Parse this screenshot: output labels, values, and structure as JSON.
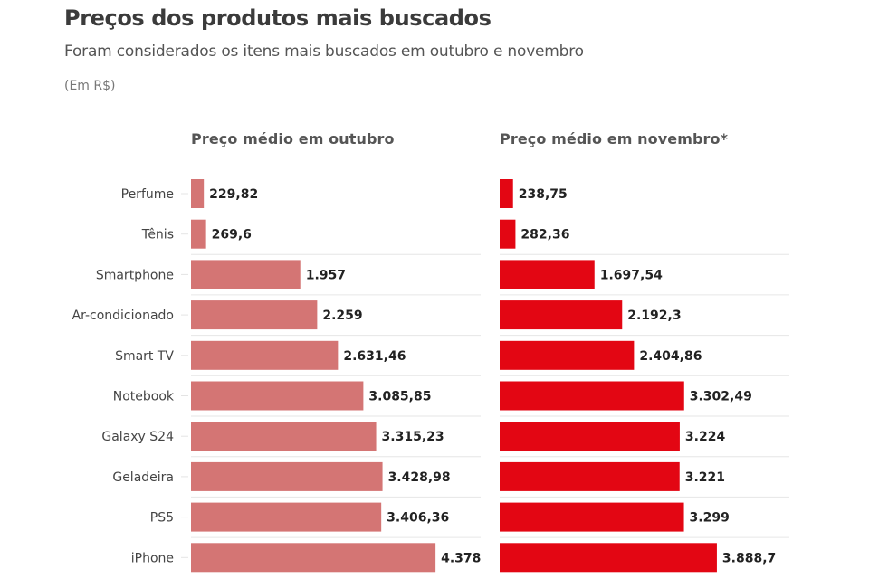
{
  "header": {
    "title": "Preços dos produtos mais buscados",
    "subtitle": "Foram considerados os itens mais buscados em outubro e novembro",
    "unit": "(Em R$)"
  },
  "chart_data": {
    "type": "bar",
    "orientation": "horizontal",
    "layout": "small-multiples",
    "title": "Preços dos produtos mais buscados",
    "subtitle": "Foram considerados os itens mais buscados em outubro e novembro",
    "unit": "R$",
    "categories": [
      "Perfume",
      "Tênis",
      "Smartphone",
      "Ar-condicionado",
      "Smart TV",
      "Notebook",
      "Galaxy S24",
      "Geladeira",
      "PS5",
      "iPhone"
    ],
    "xlim": [
      0,
      5000
    ],
    "grid": false,
    "series": [
      {
        "name": "Preço médio em outubro",
        "color": "#d47574",
        "values": [
          229.82,
          269.6,
          1957,
          2259,
          2631.46,
          3085.85,
          3315.23,
          3428.98,
          3406.36,
          4378
        ],
        "labels": [
          "229,82",
          "269,6",
          "1.957",
          "2.259",
          "2.631,46",
          "3.085,85",
          "3.315,23",
          "3.428,98",
          "3.406,36",
          "4.378"
        ]
      },
      {
        "name": "Preço médio em novembro*",
        "color": "#e30613",
        "values": [
          238.75,
          282.36,
          1697.54,
          2192.3,
          2404.86,
          3302.49,
          3224,
          3221,
          3299,
          3888.7
        ],
        "labels": [
          "238,75",
          "282,36",
          "1.697,54",
          "2.192,3",
          "2.404,86",
          "3.302,49",
          "3.224",
          "3.221",
          "3.299",
          "3.888,7"
        ]
      }
    ]
  }
}
